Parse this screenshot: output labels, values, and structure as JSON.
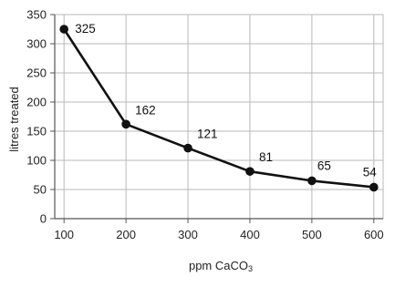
{
  "chart_data": {
    "type": "line",
    "xlabel": "ppm CaCO",
    "xlabel_subscript": "3",
    "ylabel": "litres treated",
    "x": [
      100,
      200,
      300,
      400,
      500,
      600
    ],
    "series": [
      {
        "values": [
          325,
          162,
          121,
          81,
          65,
          54
        ],
        "data_labels": [
          "325",
          "162",
          "121",
          "81",
          "65",
          "54"
        ]
      }
    ],
    "x_ticks": [
      "100",
      "200",
      "300",
      "400",
      "500",
      "600"
    ],
    "y_ticks": [
      "0",
      "50",
      "100",
      "150",
      "200",
      "250",
      "300",
      "350"
    ],
    "xlim": [
      100,
      600
    ],
    "ylim": [
      0,
      350
    ],
    "grid": true,
    "colors": {
      "line": "#111111",
      "marker": "#111111",
      "grid": "#b8b8b8",
      "axis": "#555555"
    }
  }
}
